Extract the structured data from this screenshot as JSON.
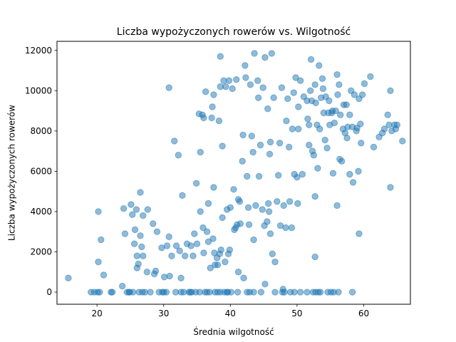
{
  "chart_data": {
    "type": "scatter",
    "title": "Liczba wypożyczonych rowerów vs. Wilgotność",
    "xlabel": "Średnia wilgotność",
    "ylabel": "Liczba wypożyczonych rowerów",
    "xlim": [
      14,
      67
    ],
    "ylim": [
      -600,
      12450
    ],
    "xticks": [
      20,
      30,
      40,
      50,
      60
    ],
    "yticks": [
      0,
      2000,
      4000,
      6000,
      8000,
      10000,
      12000
    ],
    "grid": false,
    "series": [
      {
        "color": "#1f77b4",
        "points": [
          [
            15.7,
            700
          ],
          [
            19.1,
            0
          ],
          [
            19.6,
            0
          ],
          [
            20.1,
            0
          ],
          [
            20.4,
            0
          ],
          [
            20.2,
            1500
          ],
          [
            20.2,
            4000
          ],
          [
            20.6,
            2600
          ],
          [
            21.0,
            850
          ],
          [
            22.1,
            0
          ],
          [
            22.3,
            0
          ],
          [
            23.8,
            300
          ],
          [
            24.0,
            4150
          ],
          [
            24.2,
            2900
          ],
          [
            24.5,
            0
          ],
          [
            24.8,
            0
          ],
          [
            25.1,
            4350
          ],
          [
            25.3,
            3850
          ],
          [
            25.6,
            2400
          ],
          [
            25.4,
            0
          ],
          [
            25.7,
            3100
          ],
          [
            25.9,
            4100
          ],
          [
            26.0,
            1800
          ],
          [
            26.2,
            1400
          ],
          [
            26.0,
            1200
          ],
          [
            26.3,
            0
          ],
          [
            26.5,
            4950
          ],
          [
            26.5,
            2800
          ],
          [
            26.7,
            2250
          ],
          [
            26.9,
            3800
          ],
          [
            26.9,
            1800
          ],
          [
            27.2,
            0
          ],
          [
            27.5,
            1000
          ],
          [
            27.6,
            4100
          ],
          [
            28.0,
            0
          ],
          [
            28.4,
            3400
          ],
          [
            28.6,
            900
          ],
          [
            28.8,
            1050
          ],
          [
            29.0,
            3000
          ],
          [
            29.3,
            0
          ],
          [
            29.7,
            2200
          ],
          [
            30.0,
            0
          ],
          [
            30.1,
            750
          ],
          [
            30.4,
            0
          ],
          [
            30.5,
            2300
          ],
          [
            30.8,
            2750
          ],
          [
            30.8,
            10150
          ],
          [
            30.9,
            800
          ],
          [
            31.2,
            1800
          ],
          [
            31.6,
            7500
          ],
          [
            31.8,
            0
          ],
          [
            31.9,
            2300
          ],
          [
            32.2,
            6800
          ],
          [
            32.4,
            2050
          ],
          [
            32.6,
            0
          ],
          [
            32.8,
            4800
          ],
          [
            32.6,
            700
          ],
          [
            33.0,
            0
          ],
          [
            33.2,
            1800
          ],
          [
            33.5,
            2400
          ],
          [
            33.8,
            0
          ],
          [
            34.1,
            2300
          ],
          [
            34.0,
            0
          ],
          [
            34.2,
            0
          ],
          [
            34.4,
            1800
          ],
          [
            34.6,
            2900
          ],
          [
            34.8,
            0
          ],
          [
            34.9,
            5400
          ],
          [
            35.0,
            2400
          ],
          [
            35.3,
            8850
          ],
          [
            35.4,
            0
          ],
          [
            35.5,
            4000
          ],
          [
            35.5,
            6950
          ],
          [
            35.8,
            8800
          ],
          [
            35.9,
            3200
          ],
          [
            36.0,
            8650
          ],
          [
            36.0,
            1950
          ],
          [
            36.2,
            0
          ],
          [
            36.3,
            9950
          ],
          [
            36.5,
            0
          ],
          [
            36.5,
            3000
          ],
          [
            36.7,
            2500
          ],
          [
            36.7,
            4400
          ],
          [
            36.9,
            0
          ],
          [
            37.0,
            1200
          ],
          [
            37.2,
            8650
          ],
          [
            37.3,
            9200
          ],
          [
            37.4,
            2650
          ],
          [
            37.5,
            9800
          ],
          [
            37.5,
            5200
          ],
          [
            37.6,
            1950
          ],
          [
            37.7,
            0
          ],
          [
            37.7,
            1350
          ],
          [
            38.0,
            1700
          ],
          [
            38.1,
            0
          ],
          [
            38.1,
            1350
          ],
          [
            38.3,
            8500
          ],
          [
            38.4,
            1900
          ],
          [
            38.5,
            11700
          ],
          [
            38.5,
            10200
          ],
          [
            38.6,
            2100
          ],
          [
            38.8,
            3700
          ],
          [
            38.8,
            7250
          ],
          [
            39.0,
            10500
          ],
          [
            39.1,
            0
          ],
          [
            39.2,
            1500
          ],
          [
            39.3,
            10200
          ],
          [
            39.5,
            4100
          ],
          [
            39.5,
            0
          ],
          [
            39.7,
            1900
          ],
          [
            39.8,
            10500
          ],
          [
            39.9,
            2100
          ],
          [
            40.0,
            4200
          ],
          [
            40.1,
            0
          ],
          [
            40.3,
            10100
          ],
          [
            40.5,
            5100
          ],
          [
            40.6,
            3100
          ],
          [
            40.8,
            3200
          ],
          [
            40.9,
            10550
          ],
          [
            41.0,
            3350
          ],
          [
            41.1,
            0
          ],
          [
            41.2,
            4600
          ],
          [
            41.2,
            1000
          ],
          [
            41.4,
            4500
          ],
          [
            41.5,
            3400
          ],
          [
            41.8,
            6500
          ],
          [
            41.9,
            7800
          ],
          [
            42.0,
            700
          ],
          [
            42.2,
            11250
          ],
          [
            42.3,
            10650
          ],
          [
            42.5,
            5750
          ],
          [
            42.7,
            4200
          ],
          [
            42.8,
            3350
          ],
          [
            42.9,
            0
          ],
          [
            43.0,
            10300
          ],
          [
            43.2,
            7750
          ],
          [
            43.4,
            6950
          ],
          [
            43.5,
            2600
          ],
          [
            43.5,
            0
          ],
          [
            43.6,
            11850
          ],
          [
            43.8,
            4300
          ],
          [
            44.1,
            10500
          ],
          [
            44.2,
            9650
          ],
          [
            44.3,
            5750
          ],
          [
            44.5,
            7300
          ],
          [
            44.8,
            4100
          ],
          [
            44.9,
            10150
          ],
          [
            45.1,
            3300
          ],
          [
            45.2,
            11650
          ],
          [
            45.2,
            400
          ],
          [
            45.5,
            3500
          ],
          [
            45.6,
            9100
          ],
          [
            45.7,
            4400
          ],
          [
            45.8,
            4000
          ],
          [
            45.9,
            6850
          ],
          [
            46.0,
            7450
          ],
          [
            46.0,
            2900
          ],
          [
            46.2,
            11850
          ],
          [
            46.3,
            1900
          ],
          [
            46.5,
            9650
          ],
          [
            46.7,
            1500
          ],
          [
            46.7,
            0
          ],
          [
            47.0,
            4500
          ],
          [
            47.2,
            5800
          ],
          [
            47.4,
            7400
          ],
          [
            47.5,
            3300
          ],
          [
            47.7,
            10150
          ],
          [
            47.9,
            150
          ],
          [
            48.0,
            4300
          ],
          [
            48.1,
            0
          ],
          [
            48.3,
            3200
          ],
          [
            48.4,
            8500
          ],
          [
            48.6,
            9600
          ],
          [
            48.8,
            7200
          ],
          [
            48.9,
            4500
          ],
          [
            49.0,
            0
          ],
          [
            49.2,
            3200
          ],
          [
            49.3,
            8100
          ],
          [
            49.5,
            9900
          ],
          [
            49.6,
            5850
          ],
          [
            49.6,
            0
          ],
          [
            49.8,
            10650
          ],
          [
            50.0,
            5700
          ],
          [
            50.1,
            4400
          ],
          [
            50.2,
            9200
          ],
          [
            50.2,
            8100
          ],
          [
            50.5,
            10500
          ],
          [
            50.5,
            0
          ],
          [
            50.8,
            5850
          ],
          [
            51.0,
            9700
          ],
          [
            51.5,
            0
          ],
          [
            51.5,
            9500
          ],
          [
            51.6,
            8600
          ],
          [
            51.8,
            7300
          ],
          [
            51.8,
            8300
          ],
          [
            52.0,
            10000
          ],
          [
            52.1,
            11550
          ],
          [
            52.2,
            9500
          ],
          [
            52.3,
            7000
          ],
          [
            52.4,
            0
          ],
          [
            52.5,
            6800
          ],
          [
            52.7,
            10300
          ],
          [
            52.7,
            4750
          ],
          [
            52.7,
            1750
          ],
          [
            52.8,
            9400
          ],
          [
            53.0,
            8300
          ],
          [
            53.1,
            6150
          ],
          [
            53.2,
            0
          ],
          [
            53.3,
            11250
          ],
          [
            53.4,
            8100
          ],
          [
            53.5,
            0
          ],
          [
            53.6,
            9650
          ],
          [
            53.8,
            10600
          ],
          [
            53.9,
            10100
          ],
          [
            54.0,
            8900
          ],
          [
            54.2,
            7550
          ],
          [
            54.3,
            9700
          ],
          [
            54.5,
            7150
          ],
          [
            54.6,
            0
          ],
          [
            54.7,
            8900
          ],
          [
            54.8,
            9500
          ],
          [
            54.9,
            8300
          ],
          [
            55.1,
            0
          ],
          [
            55.2,
            8900
          ],
          [
            55.3,
            9000
          ],
          [
            55.4,
            5900
          ],
          [
            55.6,
            8400
          ],
          [
            55.8,
            9000
          ],
          [
            56.0,
            4300
          ],
          [
            56.0,
            10800
          ],
          [
            56.1,
            9800
          ],
          [
            56.2,
            0
          ],
          [
            56.3,
            10300
          ],
          [
            56.4,
            6600
          ],
          [
            56.5,
            8800
          ],
          [
            56.7,
            6500
          ],
          [
            56.9,
            8100
          ],
          [
            57.0,
            9300
          ],
          [
            57.2,
            7900
          ],
          [
            57.4,
            9300
          ],
          [
            57.5,
            7650
          ],
          [
            57.6,
            8200
          ],
          [
            57.9,
            8800
          ],
          [
            57.9,
            5850
          ],
          [
            58.1,
            10000
          ],
          [
            58.3,
            8200
          ],
          [
            58.4,
            5450
          ],
          [
            58.6,
            9800
          ],
          [
            58.9,
            8000
          ],
          [
            59.0,
            8150
          ],
          [
            59.2,
            6000
          ],
          [
            59.3,
            2900
          ],
          [
            59.3,
            9600
          ],
          [
            59.5,
            8350
          ],
          [
            59.6,
            7400
          ],
          [
            59.8,
            9800
          ],
          [
            60.1,
            10350
          ],
          [
            61.0,
            10700
          ],
          [
            61.5,
            7200
          ],
          [
            62.3,
            7700
          ],
          [
            62.8,
            7900
          ],
          [
            63.1,
            8100
          ],
          [
            63.6,
            8800
          ],
          [
            63.8,
            8300
          ],
          [
            64.0,
            10000
          ],
          [
            64.0,
            5200
          ],
          [
            64.2,
            8000
          ],
          [
            64.6,
            8300
          ],
          [
            64.8,
            8100
          ],
          [
            65.0,
            8300
          ],
          [
            65.8,
            7500
          ],
          [
            38.5,
            0
          ],
          [
            39.6,
            0
          ],
          [
            42.5,
            0
          ],
          [
            44.6,
            0
          ],
          [
            47.8,
            0
          ],
          [
            52.8,
            0
          ],
          [
            55.5,
            0
          ],
          [
            58.3,
            0
          ],
          [
            29.8,
            0
          ],
          [
            26.8,
            0
          ],
          [
            24.9,
            0
          ]
        ]
      }
    ]
  }
}
